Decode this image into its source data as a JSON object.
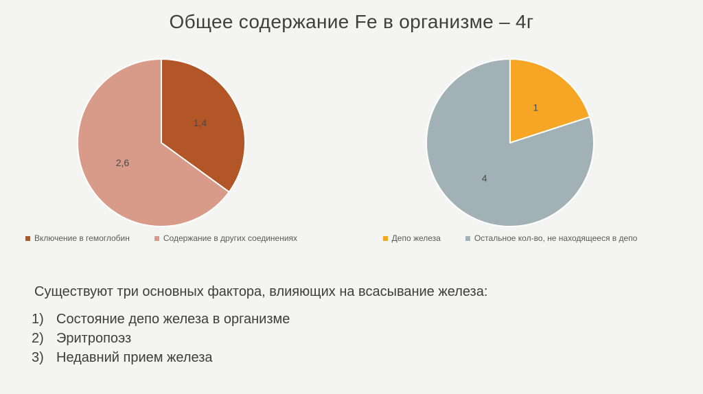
{
  "slide": {
    "title": "Общее содержание Fe в организме – 4г",
    "background_color": "#f4f4f3",
    "text_color": "#3f3f3f"
  },
  "chart_data": [
    {
      "type": "pie",
      "title": "",
      "labels": [
        "Включение в гемоглобин",
        "Содержание в других соединениях"
      ],
      "values": [
        1.4,
        2.6
      ],
      "value_labels": [
        "1,4",
        "2,6"
      ],
      "colors": [
        "#b25527",
        "#d89a89"
      ],
      "total": 4,
      "start_angle_deg": 0,
      "direction": "clockwise",
      "legend_position": "bottom"
    },
    {
      "type": "pie",
      "title": "",
      "labels": [
        "Депо железа",
        "Остальное кол-во, не находящееся в депо"
      ],
      "values": [
        1,
        4
      ],
      "value_labels": [
        "1",
        "4"
      ],
      "colors": [
        "#f6a624",
        "#a2b1b5"
      ],
      "total": 5,
      "start_angle_deg": 0,
      "direction": "clockwise",
      "legend_position": "bottom"
    }
  ],
  "body": {
    "heading": "Существуют три основных фактора, влияющих на всасывание железа:",
    "items": [
      {
        "num": "1)",
        "text": "Состояние депо железа в организме"
      },
      {
        "num": "2)",
        "text": "Эритропоэз"
      },
      {
        "num": "3)",
        "text": "Недавний прием железа"
      }
    ]
  }
}
